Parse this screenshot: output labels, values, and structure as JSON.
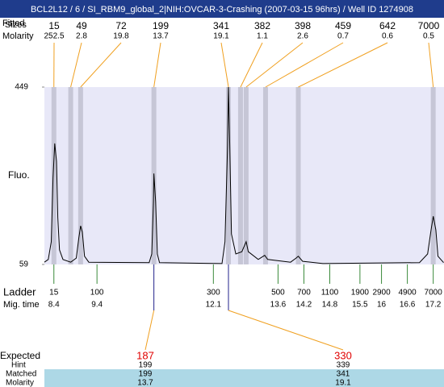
{
  "title": "BCL2L12 / 6 / SI_RBM9_global_2|NIH:OVCAR-3-Crashing (2007-03-15 96hrs) / Well ID 1274908",
  "chart_data": {
    "type": "electropherogram",
    "y_label": "Fluo.",
    "ylim": [
      59,
      449
    ],
    "yticks": [
      59,
      449
    ],
    "xlim": [
      8.18,
      17.45
    ],
    "trace": {
      "x": [
        8.18,
        8.27,
        8.34,
        8.38,
        8.42,
        8.46,
        8.49,
        8.53,
        8.61,
        8.79,
        8.92,
        8.98,
        9.02,
        9.06,
        9.11,
        9.21,
        10.61,
        10.67,
        10.71,
        10.72,
        10.76,
        10.8,
        10.85,
        12.3,
        12.37,
        12.43,
        12.45,
        12.48,
        12.52,
        12.62,
        12.76,
        12.86,
        12.91,
        13.14,
        13.29,
        13.36,
        13.89,
        14.02,
        14.07,
        14.17,
        14.64,
        16.88,
        17.07,
        17.15,
        17.2,
        17.26,
        17.31,
        17.44
      ],
      "values": [
        64,
        70,
        109,
        250,
        325,
        286,
        162,
        91,
        70,
        64,
        73,
        118,
        144,
        130,
        77,
        64,
        63,
        82,
        197,
        259,
        197,
        82,
        63,
        61,
        109,
        321,
        449,
        321,
        126,
        82,
        87,
        109,
        87,
        70,
        79,
        70,
        64,
        73,
        77,
        66,
        61,
        63,
        82,
        135,
        165,
        135,
        77,
        63
      ]
    },
    "peaks": {
      "fitted_label": "Fitted",
      "sizes_label": "Sizes",
      "molarity_label": "Molarity",
      "sizes": [
        15,
        49,
        72,
        199,
        341,
        382,
        398,
        459,
        642,
        7000
      ],
      "molarity": [
        252.5,
        2.8,
        19.8,
        13.7,
        19.1,
        1.1,
        2.6,
        0.7,
        0.6,
        0.5
      ],
      "mig_time": [
        8.4,
        8.79,
        9.02,
        10.72,
        12.45,
        12.73,
        12.86,
        13.31,
        14.07,
        17.2
      ]
    },
    "ladder": {
      "label": "Ladder",
      "mig_label": "Mig. time",
      "sizes": [
        15,
        100,
        300,
        500,
        700,
        1100,
        1900,
        2900,
        4900,
        7000
      ],
      "mig_times": [
        8.4,
        9.4,
        12.1,
        13.6,
        14.2,
        14.8,
        15.5,
        16,
        16.6,
        17.2
      ]
    },
    "expected": {
      "expected_label": "Expected",
      "hint_label": "Hint",
      "matched_label": "Matched",
      "molarity_label": "Molarity",
      "expected": [
        187,
        330
      ],
      "hint": [
        199,
        339
      ],
      "matched": [
        199,
        341
      ],
      "molarity": [
        13.7,
        19.1
      ]
    }
  }
}
